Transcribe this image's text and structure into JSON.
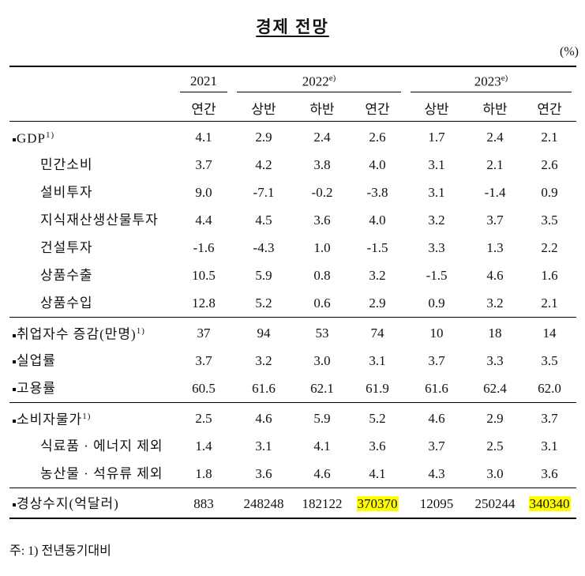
{
  "title": "경제 전망",
  "unit": "(%)",
  "header": {
    "years": [
      {
        "label": "2021",
        "periods": [
          "연간"
        ]
      },
      {
        "label": "2022",
        "sup": "e)",
        "periods": [
          "상반",
          "하반",
          "연간"
        ]
      },
      {
        "label": "2023",
        "sup": "e)",
        "periods": [
          "상반",
          "하반",
          "연간"
        ]
      }
    ]
  },
  "groups": [
    [
      {
        "label": "GDP",
        "sup": "1)",
        "values": [
          "4.1",
          "2.9",
          "2.4",
          "2.6",
          "1.7",
          "2.4",
          "2.1"
        ]
      },
      {
        "label": "민간소비",
        "sub": true,
        "values": [
          "3.7",
          "4.2",
          "3.8",
          "4.0",
          "3.1",
          "2.1",
          "2.6"
        ]
      },
      {
        "label": "설비투자",
        "sub": true,
        "values": [
          "9.0",
          "-7.1",
          "-0.2",
          "-3.8",
          "3.1",
          "-1.4",
          "0.9"
        ]
      },
      {
        "label": "지식재산생산물투자",
        "sub": true,
        "values": [
          "4.4",
          "4.5",
          "3.6",
          "4.0",
          "3.2",
          "3.7",
          "3.5"
        ]
      },
      {
        "label": "건설투자",
        "sub": true,
        "values": [
          "-1.6",
          "-4.3",
          "1.0",
          "-1.5",
          "3.3",
          "1.3",
          "2.2"
        ]
      },
      {
        "label": "상품수출",
        "sub": true,
        "values": [
          "10.5",
          "5.9",
          "0.8",
          "3.2",
          "-1.5",
          "4.6",
          "1.6"
        ]
      },
      {
        "label": "상품수입",
        "sub": true,
        "values": [
          "12.8",
          "5.2",
          "0.6",
          "2.9",
          "0.9",
          "3.2",
          "2.1"
        ]
      }
    ],
    [
      {
        "label": "취업자수 증감(만명)",
        "sup": "1)",
        "values": [
          "37",
          "94",
          "53",
          "74",
          "10",
          "18",
          "14"
        ]
      },
      {
        "label": "실업률",
        "values": [
          "3.7",
          "3.2",
          "3.0",
          "3.1",
          "3.7",
          "3.3",
          "3.5"
        ]
      },
      {
        "label": "고용률",
        "values": [
          "60.5",
          "61.6",
          "62.1",
          "61.9",
          "61.6",
          "62.4",
          "62.0"
        ]
      }
    ],
    [
      {
        "label": "소비자물가",
        "sup": "1)",
        "values": [
          "2.5",
          "4.6",
          "5.9",
          "5.2",
          "4.6",
          "2.9",
          "3.7"
        ]
      },
      {
        "label": "식료품 · 에너지 제외",
        "sub": true,
        "values": [
          "1.4",
          "3.1",
          "4.1",
          "3.6",
          "3.7",
          "2.5",
          "3.1"
        ]
      },
      {
        "label": "농산물 · 석유류 제외",
        "sub": true,
        "values": [
          "1.8",
          "3.6",
          "4.6",
          "4.1",
          "4.3",
          "3.0",
          "3.6"
        ]
      }
    ],
    [
      {
        "label": "경상수지(억달러)",
        "values": [
          "883",
          "248248",
          "182122",
          "370370",
          "12095",
          "250244",
          "340340"
        ],
        "highlight": [
          3,
          6
        ]
      }
    ]
  ],
  "footnote": "주: 1) 전년동기대비"
}
